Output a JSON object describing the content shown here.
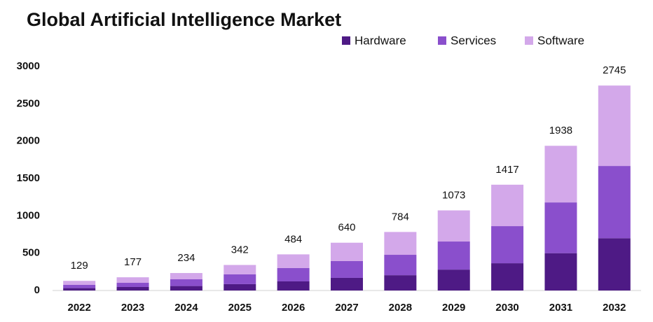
{
  "chart_data": {
    "type": "stacked_bar",
    "title": "Global Artificial Intelligence Market",
    "categories": [
      "2022",
      "2023",
      "2024",
      "2025",
      "2026",
      "2027",
      "2028",
      "2029",
      "2030",
      "2031",
      "2032"
    ],
    "series": [
      {
        "name": "Hardware",
        "color": "#4e1a85",
        "values": [
          32,
          47,
          60,
          85,
          122,
          169,
          205,
          280,
          365,
          500,
          700
        ]
      },
      {
        "name": "Services",
        "color": "#8a4fcc",
        "values": [
          43,
          56,
          90,
          131,
          178,
          225,
          273,
          376,
          497,
          680,
          968
        ]
      },
      {
        "name": "Software",
        "color": "#d3a8ea",
        "values": [
          54,
          74,
          84,
          126,
          184,
          246,
          306,
          417,
          555,
          758,
          1077
        ]
      }
    ],
    "totals": [
      129,
      177,
      234,
      342,
      484,
      640,
      784,
      1073,
      1417,
      1938,
      2745
    ],
    "ylim": [
      0,
      3000
    ],
    "yticks": [
      0,
      500,
      1000,
      1500,
      2000,
      2500,
      3000
    ],
    "grid": false,
    "legend": "top-right"
  }
}
